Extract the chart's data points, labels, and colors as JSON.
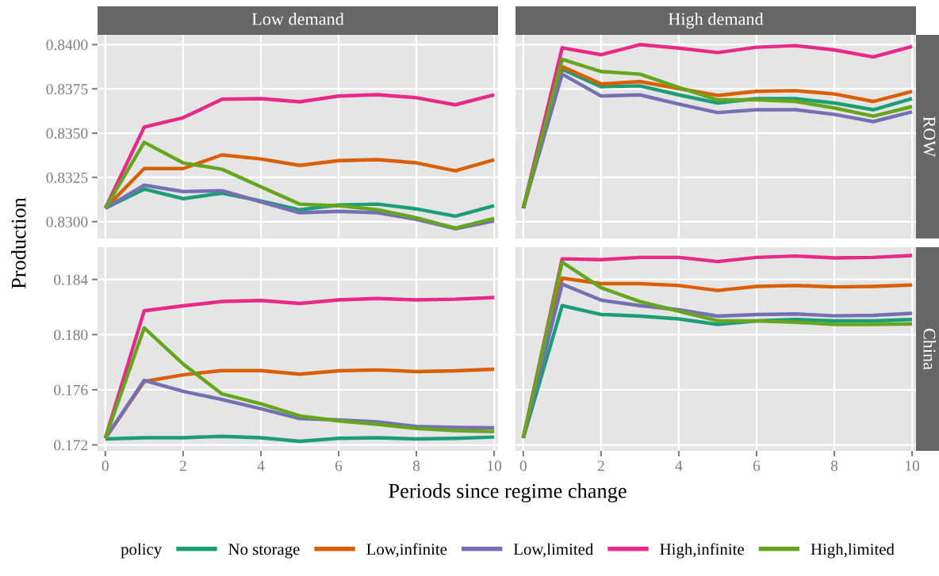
{
  "chart_data": [
    {
      "type": "line",
      "title": "Low demand",
      "ylabel": "Production",
      "legend": "bottom",
      "legend_title": "policy",
      "tick_labels": "y",
      "grid": true,
      "x": [
        0,
        1,
        2,
        3,
        4,
        5,
        6,
        7,
        8,
        9,
        10
      ],
      "xlim": [
        -0.2,
        10.1
      ],
      "xticks": [
        0,
        2,
        4,
        6,
        8,
        10
      ],
      "ylim": [
        0.82905,
        0.84055
      ],
      "yticks": [
        {
          "value": 0.83,
          "label": "0.8300"
        },
        {
          "value": 0.8325,
          "label": "0.8325"
        },
        {
          "value": 0.835,
          "label": "0.8350"
        },
        {
          "value": 0.8375,
          "label": "0.8375"
        },
        {
          "value": 0.84,
          "label": "0.8400"
        }
      ],
      "series": [
        {
          "name": "No storage",
          "color": "#1b9e77",
          "values": [
            0.83076,
            0.83184,
            0.8313,
            0.83161,
            0.83117,
            0.83067,
            0.83094,
            0.83099,
            0.83072,
            0.83031,
            0.8309
          ]
        },
        {
          "name": "Low,infinite",
          "color": "#d95f02",
          "values": [
            0.83076,
            0.833,
            0.833,
            0.83377,
            0.83354,
            0.83318,
            0.83345,
            0.8335,
            0.83332,
            0.83287,
            0.8335
          ]
        },
        {
          "name": "Low,limited",
          "color": "#7570b3",
          "values": [
            0.83076,
            0.83206,
            0.8317,
            0.83175,
            0.83112,
            0.8305,
            0.83058,
            0.8305,
            0.83013,
            0.8296,
            0.83004
          ]
        },
        {
          "name": "High,infinite",
          "color": "#e7298a",
          "values": [
            0.83076,
            0.83534,
            0.83587,
            0.83691,
            0.83695,
            0.83677,
            0.83709,
            0.83717,
            0.837,
            0.8366,
            0.83717
          ]
        },
        {
          "name": "High,limited",
          "color": "#66a61e",
          "values": [
            0.83076,
            0.83448,
            0.83332,
            0.83296,
            0.83197,
            0.83099,
            0.8309,
            0.83067,
            0.83022,
            0.82964,
            0.83018
          ]
        }
      ]
    },
    {
      "type": "line",
      "title": "High demand",
      "annotations": [
        "ROW"
      ],
      "tick_labels": false,
      "grid": true,
      "x": [
        0,
        1,
        2,
        3,
        4,
        5,
        6,
        7,
        8,
        9,
        10
      ],
      "xlim": [
        -0.2,
        10.1
      ],
      "xticks": [
        0,
        2,
        4,
        6,
        8,
        10
      ],
      "ylim": [
        0.82905,
        0.84055
      ],
      "yticks": [
        {
          "value": 0.83,
          "label": null
        },
        {
          "value": 0.8325,
          "label": null
        },
        {
          "value": 0.835,
          "label": null
        },
        {
          "value": 0.8375,
          "label": null
        },
        {
          "value": 0.84,
          "label": null
        }
      ],
      "series": [
        {
          "color": "#1b9e77",
          "values": [
            0.83076,
            0.8386,
            0.83762,
            0.83767,
            0.83716,
            0.8367,
            0.83695,
            0.83695,
            0.8367,
            0.83632,
            0.83695
          ]
        },
        {
          "color": "#d95f02",
          "values": [
            0.83076,
            0.83876,
            0.83778,
            0.83791,
            0.83752,
            0.83713,
            0.83736,
            0.8374,
            0.83721,
            0.83679,
            0.83736
          ]
        },
        {
          "color": "#7570b3",
          "values": [
            0.83076,
            0.83833,
            0.8371,
            0.83716,
            0.83664,
            0.83616,
            0.83632,
            0.83632,
            0.83606,
            0.83565,
            0.8362
          ]
        },
        {
          "color": "#e7298a",
          "values": [
            0.83076,
            0.83982,
            0.83943,
            0.84,
            0.8398,
            0.83955,
            0.83985,
            0.83994,
            0.8397,
            0.8393,
            0.8399
          ]
        },
        {
          "color": "#66a61e",
          "values": [
            0.83076,
            0.83917,
            0.83848,
            0.83833,
            0.83758,
            0.83688,
            0.83688,
            0.83679,
            0.83642,
            0.83596,
            0.8365
          ]
        }
      ]
    },
    {
      "type": "line",
      "xlabel": "Periods since regime change",
      "grid": true,
      "x": [
        0,
        1,
        2,
        3,
        4,
        5,
        6,
        7,
        8,
        9,
        10
      ],
      "xlim": [
        -0.2,
        10.1
      ],
      "xticks": [
        0,
        2,
        4,
        6,
        8,
        10
      ],
      "ylim": [
        0.17157,
        0.18634
      ],
      "yticks": [
        0.172,
        0.176,
        {
          "value": 0.18,
          "label": "0.180"
        },
        0.184
      ],
      "series": [
        {
          "color": "#1b9e77",
          "values": [
            0.17243,
            0.17252,
            0.17252,
            0.17262,
            0.17252,
            0.17226,
            0.17248,
            0.17252,
            0.17243,
            0.17248,
            0.17257
          ]
        },
        {
          "color": "#d95f02",
          "values": [
            0.17248,
            0.1766,
            0.17708,
            0.17739,
            0.17739,
            0.17713,
            0.17737,
            0.17744,
            0.17732,
            0.17737,
            0.17749
          ]
        },
        {
          "color": "#7570b3",
          "values": [
            0.17248,
            0.17668,
            0.17589,
            0.17529,
            0.17462,
            0.17391,
            0.17381,
            0.17367,
            0.17334,
            0.17326,
            0.17324
          ]
        },
        {
          "color": "#e7298a",
          "values": [
            0.17248,
            0.18173,
            0.18209,
            0.1824,
            0.18247,
            0.18226,
            0.18252,
            0.18262,
            0.18252,
            0.18257,
            0.18269
          ]
        },
        {
          "color": "#66a61e",
          "values": [
            0.17248,
            0.18049,
            0.17787,
            0.1757,
            0.17498,
            0.1741,
            0.17374,
            0.1735,
            0.17319,
            0.17303,
            0.17296
          ]
        }
      ]
    },
    {
      "type": "line",
      "annotations": [
        "China"
      ],
      "tick_labels": "x",
      "grid": true,
      "x": [
        0,
        1,
        2,
        3,
        4,
        5,
        6,
        7,
        8,
        9,
        10
      ],
      "xlim": [
        -0.2,
        10.1
      ],
      "xticks": [
        0,
        2,
        4,
        6,
        8,
        10
      ],
      "ylim": [
        0.17157,
        0.18634
      ],
      "yticks": [
        {
          "value": 0.172,
          "label": null
        },
        {
          "value": 0.176,
          "label": null
        },
        {
          "value": 0.18,
          "label": null
        },
        {
          "value": 0.184,
          "label": null
        }
      ],
      "series": [
        {
          "color": "#1b9e77",
          "values": [
            0.1725,
            0.1821,
            0.18146,
            0.18134,
            0.18114,
            0.18074,
            0.181,
            0.1811,
            0.181,
            0.181,
            0.1811
          ]
        },
        {
          "color": "#d95f02",
          "values": [
            0.1725,
            0.1841,
            0.1837,
            0.1837,
            0.18356,
            0.1832,
            0.1835,
            0.18356,
            0.18346,
            0.1835,
            0.1836
          ]
        },
        {
          "color": "#7570b3",
          "values": [
            0.1725,
            0.18366,
            0.1825,
            0.1821,
            0.1818,
            0.18134,
            0.18146,
            0.1815,
            0.18136,
            0.1814,
            0.18154
          ]
        },
        {
          "color": "#e7298a",
          "values": [
            0.1725,
            0.1855,
            0.18544,
            0.1856,
            0.1856,
            0.1853,
            0.1856,
            0.1857,
            0.18556,
            0.1856,
            0.18574
          ]
        },
        {
          "color": "#66a61e",
          "values": [
            0.1725,
            0.18526,
            0.1834,
            0.1824,
            0.1817,
            0.181,
            0.181,
            0.1809,
            0.18074,
            0.18074,
            0.18078
          ]
        }
      ]
    }
  ]
}
